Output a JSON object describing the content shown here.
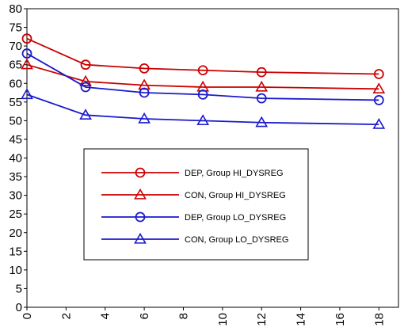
{
  "chart_data": {
    "type": "line",
    "title": "",
    "xlabel": "",
    "ylabel": "",
    "xlim": [
      0,
      19
    ],
    "ylim": [
      0,
      80
    ],
    "x_ticks": [
      0,
      2,
      4,
      6,
      8,
      10,
      12,
      14,
      16,
      18
    ],
    "y_ticks": [
      0,
      5,
      10,
      15,
      20,
      25,
      30,
      35,
      40,
      45,
      50,
      55,
      60,
      65,
      70,
      75,
      80
    ],
    "x_tick_labels": [
      "0",
      "2",
      "4",
      "6",
      "8",
      "10",
      "12",
      "14",
      "16",
      "18"
    ],
    "y_tick_labels": [
      "0",
      "5",
      "10",
      "15",
      "20",
      "25",
      "30",
      "35",
      "40",
      "45",
      "50",
      "55",
      "60",
      "65",
      "70",
      "75",
      "80"
    ],
    "grid": false,
    "legend_position": "center-left",
    "series": [
      {
        "name": "DEP, Group HI_DYSREG",
        "color": "#cc0000",
        "marker": "circle",
        "x": [
          0,
          3,
          6,
          9,
          12,
          18
        ],
        "y": [
          72,
          65,
          64,
          63.5,
          63,
          62.5
        ]
      },
      {
        "name": "CON, Group HI_DYSREG",
        "color": "#cc0000",
        "marker": "triangle",
        "x": [
          0,
          3,
          6,
          9,
          12,
          18
        ],
        "y": [
          65,
          60.5,
          59.5,
          59,
          59,
          58.5
        ]
      },
      {
        "name": "DEP, Group LO_DYSREG",
        "color": "#1a1acc",
        "marker": "circle",
        "x": [
          0,
          3,
          6,
          9,
          12,
          18
        ],
        "y": [
          68,
          59,
          57.5,
          57,
          56,
          55.5
        ]
      },
      {
        "name": "CON, Group LO_DYSREG",
        "color": "#1a1acc",
        "marker": "triangle",
        "x": [
          0,
          3,
          6,
          9,
          12,
          18
        ],
        "y": [
          57,
          51.5,
          50.5,
          50,
          49.5,
          49
        ]
      }
    ]
  }
}
